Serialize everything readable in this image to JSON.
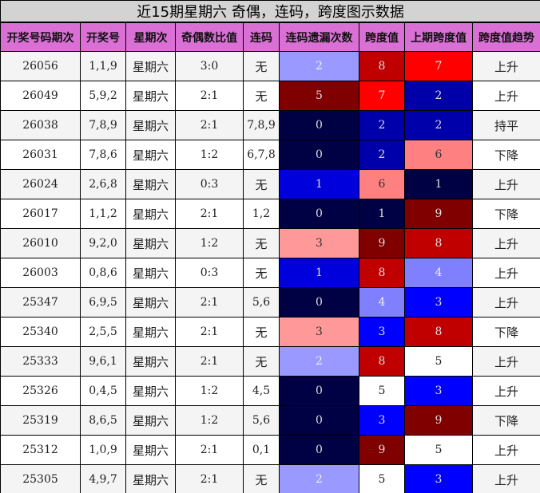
{
  "title": "近15期星期六 奇偶，连码，跨度图示数据",
  "headers": [
    "开奖号码期次",
    "开奖号",
    "星期次",
    "奇偶数比值",
    "连码",
    "连码遗漏次数",
    "跨度值",
    "上期跨度值",
    "跨度值趋势"
  ],
  "rows": [
    [
      "26056",
      "1,1,9",
      "星期六",
      "3:0",
      "无",
      "2",
      "8",
      "7",
      "上升"
    ],
    [
      "26049",
      "5,9,2",
      "星期六",
      "2:1",
      "无",
      "5",
      "7",
      "2",
      "上升"
    ],
    [
      "26038",
      "7,8,9",
      "星期六",
      "2:1",
      "7,8,9",
      "0",
      "2",
      "2",
      "持平"
    ],
    [
      "26031",
      "7,8,6",
      "星期六",
      "1:2",
      "6,7,8",
      "0",
      "2",
      "6",
      "下降"
    ],
    [
      "26024",
      "2,6,8",
      "星期六",
      "0:3",
      "无",
      "1",
      "6",
      "1",
      "上升"
    ],
    [
      "26017",
      "1,1,2",
      "星期六",
      "2:1",
      "1,2",
      "0",
      "1",
      "9",
      "下降"
    ],
    [
      "26010",
      "9,2,0",
      "星期六",
      "1:2",
      "无",
      "3",
      "9",
      "8",
      "上升"
    ],
    [
      "26003",
      "0,8,6",
      "星期六",
      "0:3",
      "无",
      "1",
      "8",
      "4",
      "上升"
    ],
    [
      "25347",
      "6,9,5",
      "星期六",
      "2:1",
      "5,6",
      "0",
      "4",
      "3",
      "上升"
    ],
    [
      "25340",
      "2,5,5",
      "星期六",
      "2:1",
      "无",
      "3",
      "3",
      "8",
      "下降"
    ],
    [
      "25333",
      "9,6,1",
      "星期六",
      "2:1",
      "无",
      "2",
      "8",
      "5",
      "上升"
    ],
    [
      "25326",
      "0,4,5",
      "星期六",
      "1:2",
      "4,5",
      "0",
      "5",
      "3",
      "上升"
    ],
    [
      "25319",
      "8,6,5",
      "星期六",
      "1:2",
      "5,6",
      "0",
      "3",
      "9",
      "下降"
    ],
    [
      "25312",
      "1,0,9",
      "星期六",
      "2:1",
      "0,1",
      "0",
      "9",
      "5",
      "上升"
    ],
    [
      "25305",
      "4,9,7",
      "星期六",
      "2:1",
      "无",
      "2",
      "5",
      "3",
      "上升"
    ]
  ],
  "miss_colors": {
    "0": "#000044",
    "1": "#0000dd",
    "2": "#9999ff",
    "3": "#ff9999",
    "5": "#800000"
  },
  "span_colors": {
    "1": "#000044",
    "2": "#0000aa",
    "3": "#0000ff",
    "4": "#8080ff",
    "5": "#ffffff",
    "6": "#ff8080",
    "7": "#ff0000",
    "8": "#c00000",
    "9": "#800000"
  },
  "header_color": "#da70d6"
}
